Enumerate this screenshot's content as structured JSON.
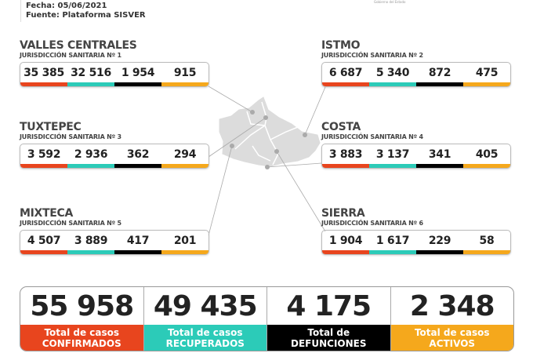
{
  "header": {
    "date": "Fecha: 05/06/2021",
    "source": "Fuente: Plataforma SISVER",
    "logo_text": "Gobierno del Estado"
  },
  "colors": {
    "confirmados": "#e8451e",
    "recuperados": "#2ccbb8",
    "defunciones": "#000000",
    "activos": "#f5a81c"
  },
  "regions": [
    {
      "name": "VALLES CENTRALES",
      "sub": "JURISDICCIÓN SANITARIA Nº 1",
      "values": [
        "35 385",
        "32 516",
        "1 954",
        "915"
      ]
    },
    {
      "name": "ISTMO",
      "sub": "JURISDICCIÓN SANITARIA Nº 2",
      "values": [
        "6 687",
        "5 340",
        "872",
        "475"
      ]
    },
    {
      "name": "TUXTEPEC",
      "sub": "JURISDICCIÓN SANITARIA Nº 3",
      "values": [
        "3 592",
        "2 936",
        "362",
        "294"
      ]
    },
    {
      "name": "COSTA",
      "sub": "JURISDICCIÓN SANITARIA Nº 4",
      "values": [
        "3 883",
        "3 137",
        "341",
        "405"
      ]
    },
    {
      "name": "MIXTECA",
      "sub": "JURISDICCIÓN SANITARIA Nº 5",
      "values": [
        "4 507",
        "3 889",
        "417",
        "201"
      ]
    },
    {
      "name": "SIERRA",
      "sub": "JURISDICCIÓN SANITARIA Nº 6",
      "values": [
        "1 904",
        "1 617",
        "229",
        "58"
      ]
    }
  ],
  "totals": [
    {
      "value": "55 958",
      "line1": "Total de casos",
      "line2": "CONFIRMADOS"
    },
    {
      "value": "49 435",
      "line1": "Total de casos",
      "line2": "RECUPERADOS"
    },
    {
      "value": "4 175",
      "line1": "Total de",
      "line2": "DEFUNCIONES"
    },
    {
      "value": "2 348",
      "line1": "Total de casos",
      "line2": "ACTIVOS"
    }
  ]
}
